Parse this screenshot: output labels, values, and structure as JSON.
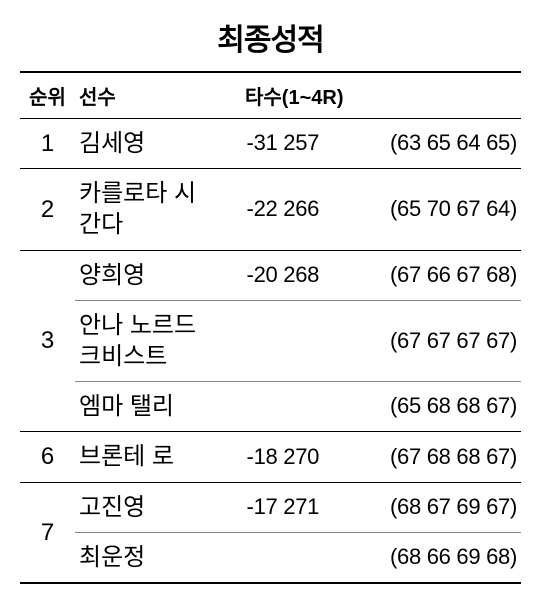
{
  "title": "최종성적",
  "headers": {
    "rank": "순위",
    "player": "선수",
    "score": "타수(1~4R)"
  },
  "rows": [
    {
      "rank": "1",
      "player": "김세영",
      "score": "-31 257",
      "rounds": "(63 65 64 65)",
      "type": "single"
    },
    {
      "rank": "2",
      "player": "카를로타 시간다",
      "score": "-22 266",
      "rounds": "(65 70 67 64)",
      "type": "single"
    },
    {
      "rank": "3",
      "player": "양희영",
      "score": "-20 268",
      "rounds": "(67 66 67 68)",
      "type": "group-first",
      "rowspan": 3
    },
    {
      "rank": "",
      "player": "안나 노르드 크비스트",
      "score": "",
      "rounds": "(67 67 67 67)",
      "type": "group-mid"
    },
    {
      "rank": "",
      "player": "엠마 탤리",
      "score": "",
      "rounds": "(65 68 68 67)",
      "type": "group-last"
    },
    {
      "rank": "6",
      "player": "브론테 로",
      "score": "-18 270",
      "rounds": "(67 68 68 67)",
      "type": "single"
    },
    {
      "rank": "7",
      "player": "고진영",
      "score": "-17 271",
      "rounds": "(68 67 69 67)",
      "type": "group-first",
      "rowspan": 2
    },
    {
      "rank": "",
      "player": "최운정",
      "score": "",
      "rounds": "(68 66 69 68)",
      "type": "group-last"
    }
  ]
}
